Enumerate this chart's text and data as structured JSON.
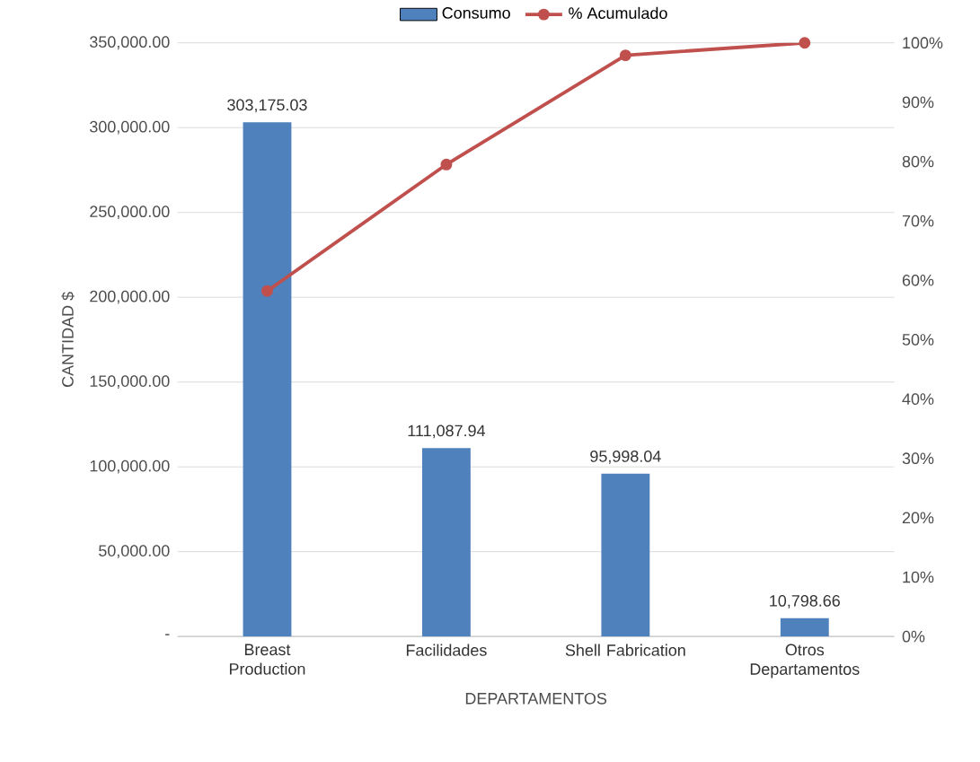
{
  "chart_data": {
    "type": "bar",
    "xlabel": "DEPARTAMENTOS",
    "ylabel": "CANTIDAD $",
    "categories": [
      "Breast Production",
      "Facilidades",
      "Shell Fabrication",
      "Otros Departamentos"
    ],
    "series": [
      {
        "name": "Consumo",
        "color": "#4f81bd",
        "values": [
          303175.03,
          111087.94,
          95998.04,
          10798.66
        ],
        "value_labels": [
          "303,175.03",
          "111,087.94",
          "95,998.04",
          "10,798.66"
        ]
      },
      {
        "name": "% Acumulado",
        "type": "line",
        "axis": "y2",
        "color": "#c0504d",
        "marker": "circle",
        "values": [
          58.2,
          79.5,
          97.9,
          100
        ]
      }
    ],
    "ylim": [
      0,
      350000
    ],
    "yticks": [
      {
        "value": 0,
        "label": "-"
      },
      {
        "value": 50000,
        "label": "50,000.00"
      },
      {
        "value": 100000,
        "label": "100,000.00"
      },
      {
        "value": 150000,
        "label": "150,000.00"
      },
      {
        "value": 200000,
        "label": "200,000.00"
      },
      {
        "value": 250000,
        "label": "250,000.00"
      },
      {
        "value": 300000,
        "label": "300,000.00"
      },
      {
        "value": 350000,
        "label": "350,000.00"
      }
    ],
    "y2lim": [
      0,
      100
    ],
    "y2ticks": [
      {
        "value": 0,
        "label": "0%"
      },
      {
        "value": 10,
        "label": "10%"
      },
      {
        "value": 20,
        "label": "20%"
      },
      {
        "value": 30,
        "label": "30%"
      },
      {
        "value": 40,
        "label": "40%"
      },
      {
        "value": 50,
        "label": "50%"
      },
      {
        "value": 60,
        "label": "60%"
      },
      {
        "value": 70,
        "label": "70%"
      },
      {
        "value": 80,
        "label": "80%"
      },
      {
        "value": 90,
        "label": "90%"
      },
      {
        "value": 100,
        "label": "100%"
      }
    ],
    "grid": "y",
    "legend": "top"
  }
}
